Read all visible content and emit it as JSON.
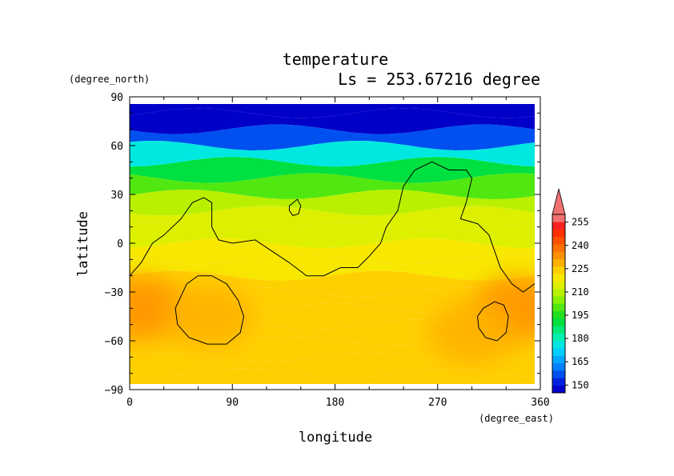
{
  "chart_data": {
    "type": "heatmap",
    "title": "temperature",
    "subtitle": "Ls = 253.67216 degree",
    "xlabel": "longitude",
    "ylabel": "latitude",
    "x_units": "(degree_east)",
    "y_units": "(degree_north)",
    "xlim": [
      0,
      360
    ],
    "ylim": [
      -90,
      90
    ],
    "x_ticks": [
      0,
      90,
      180,
      270,
      360
    ],
    "y_ticks": [
      90,
      60,
      30,
      0,
      -30,
      -60,
      -90
    ],
    "x_tick_labels": [
      "0",
      "90",
      "180",
      "270",
      "360"
    ],
    "y_tick_labels": [
      "90",
      "60",
      "30",
      "0",
      "−30",
      "−60",
      "−90"
    ],
    "colorbar": {
      "levels": [
        145,
        150,
        155,
        160,
        165,
        170,
        175,
        180,
        185,
        190,
        195,
        200,
        205,
        210,
        215,
        220,
        225,
        230,
        235,
        240,
        245,
        250,
        255,
        260
      ],
      "labels": [
        "150",
        "165",
        "180",
        "195",
        "210",
        "225",
        "240",
        "255"
      ],
      "colors": [
        "#0000c8",
        "#0022e0",
        "#0050f0",
        "#0080ff",
        "#00a8ff",
        "#00d0ff",
        "#00e8e0",
        "#00f0b0",
        "#00e878",
        "#00e040",
        "#20e020",
        "#50e810",
        "#88f000",
        "#b8f000",
        "#dcf000",
        "#f8e800",
        "#ffd000",
        "#ffb000",
        "#ff9000",
        "#ff7000",
        "#ff5000",
        "#ff3000",
        "#f82020",
        "#f07070"
      ],
      "extend": "max"
    },
    "lat_profile": {
      "lat": [
        85,
        75,
        65,
        55,
        45,
        35,
        25,
        15,
        5,
        -5,
        -15,
        -25,
        -35,
        -45,
        -55,
        -65,
        -75,
        -85
      ],
      "temp": [
        148,
        148,
        158,
        178,
        192,
        203,
        210,
        215,
        219,
        222,
        224,
        226,
        227,
        228,
        228,
        228,
        227,
        226
      ]
    },
    "warm_spots": [
      {
        "lon": 10,
        "lat": -40,
        "value": 237
      },
      {
        "lon": 70,
        "lat": -45,
        "value": 232
      },
      {
        "lon": 340,
        "lat": -40,
        "value": 238
      },
      {
        "lon": 300,
        "lat": -55,
        "value": 231
      }
    ],
    "contour_continent": [
      [
        0,
        -20
      ],
      [
        10,
        -12
      ],
      [
        20,
        0
      ],
      [
        30,
        5
      ],
      [
        45,
        15
      ],
      [
        55,
        25
      ],
      [
        65,
        28
      ],
      [
        72,
        25
      ],
      [
        72,
        10
      ],
      [
        78,
        2
      ],
      [
        90,
        0
      ],
      [
        110,
        2
      ],
      [
        125,
        -5
      ],
      [
        140,
        -12
      ],
      [
        155,
        -20
      ],
      [
        170,
        -20
      ],
      [
        185,
        -15
      ],
      [
        200,
        -15
      ],
      [
        210,
        -8
      ],
      [
        220,
        0
      ],
      [
        225,
        10
      ],
      [
        235,
        20
      ],
      [
        240,
        35
      ],
      [
        250,
        45
      ],
      [
        265,
        50
      ],
      [
        280,
        45
      ],
      [
        295,
        45
      ],
      [
        300,
        40
      ],
      [
        295,
        25
      ],
      [
        290,
        15
      ],
      [
        305,
        12
      ],
      [
        315,
        5
      ],
      [
        320,
        -5
      ],
      [
        325,
        -15
      ],
      [
        335,
        -25
      ],
      [
        345,
        -30
      ],
      [
        355,
        -25
      ],
      [
        360,
        -20
      ]
    ],
    "contour_north_blob": [
      [
        140,
        23
      ],
      [
        147,
        27
      ],
      [
        150,
        23
      ],
      [
        148,
        18
      ],
      [
        143,
        17
      ],
      [
        140,
        20
      ],
      [
        140,
        23
      ]
    ],
    "contour_south_west": [
      [
        40,
        -40
      ],
      [
        50,
        -25
      ],
      [
        60,
        -20
      ],
      [
        72,
        -20
      ],
      [
        85,
        -25
      ],
      [
        95,
        -35
      ],
      [
        100,
        -45
      ],
      [
        97,
        -55
      ],
      [
        85,
        -62
      ],
      [
        68,
        -62
      ],
      [
        52,
        -58
      ],
      [
        42,
        -50
      ],
      [
        40,
        -40
      ]
    ],
    "contour_south_east": [
      [
        305,
        -45
      ],
      [
        310,
        -40
      ],
      [
        320,
        -36
      ],
      [
        328,
        -38
      ],
      [
        332,
        -45
      ],
      [
        330,
        -55
      ],
      [
        322,
        -60
      ],
      [
        312,
        -58
      ],
      [
        306,
        -52
      ],
      [
        305,
        -45
      ]
    ]
  }
}
